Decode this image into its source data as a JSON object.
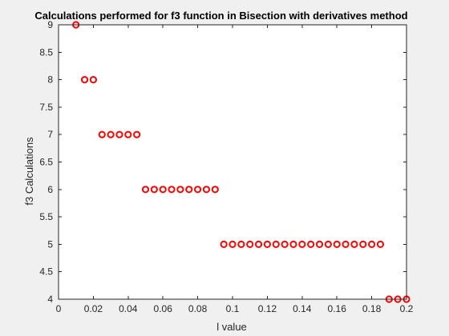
{
  "chart_data": {
    "type": "scatter",
    "title": "Calculations performed for f3 function in Bisection with derivatives method",
    "xlabel": "l value",
    "ylabel": "f3 Calculations",
    "xlim": [
      0,
      0.2
    ],
    "ylim": [
      4,
      9
    ],
    "xticks": [
      0,
      0.02,
      0.04,
      0.06,
      0.08,
      0.1,
      0.12,
      0.14,
      0.16,
      0.18,
      0.2
    ],
    "xtick_labels": [
      "0",
      "0.02",
      "0.04",
      "0.06",
      "0.08",
      "0.1",
      "0.12",
      "0.14",
      "0.16",
      "0.18",
      "0.2"
    ],
    "yticks": [
      4,
      4.5,
      5,
      5.5,
      6,
      6.5,
      7,
      7.5,
      8,
      8.5,
      9
    ],
    "ytick_labels": [
      "4",
      "4.5",
      "5",
      "5.5",
      "6",
      "6.5",
      "7",
      "7.5",
      "8",
      "8.5",
      "9"
    ],
    "grid": false,
    "marker": "circle-open",
    "marker_color": "#ff0000",
    "axes_background": "#ffffff",
    "figure_background": "#f0f0f0",
    "series": [
      {
        "x": [
          0.01,
          0.015,
          0.02,
          0.025,
          0.03,
          0.035,
          0.04,
          0.045,
          0.05,
          0.055,
          0.06,
          0.065,
          0.07,
          0.075,
          0.08,
          0.085,
          0.09,
          0.095,
          0.1,
          0.105,
          0.11,
          0.115,
          0.12,
          0.125,
          0.13,
          0.135,
          0.14,
          0.145,
          0.15,
          0.155,
          0.16,
          0.165,
          0.17,
          0.175,
          0.18,
          0.185,
          0.19,
          0.195,
          0.2
        ],
        "y": [
          9,
          8,
          8,
          7,
          7,
          7,
          7,
          7,
          6,
          6,
          6,
          6,
          6,
          6,
          6,
          6,
          6,
          5,
          5,
          5,
          5,
          5,
          5,
          5,
          5,
          5,
          5,
          5,
          5,
          5,
          5,
          5,
          5,
          5,
          5,
          5,
          4,
          4,
          4
        ]
      }
    ]
  }
}
